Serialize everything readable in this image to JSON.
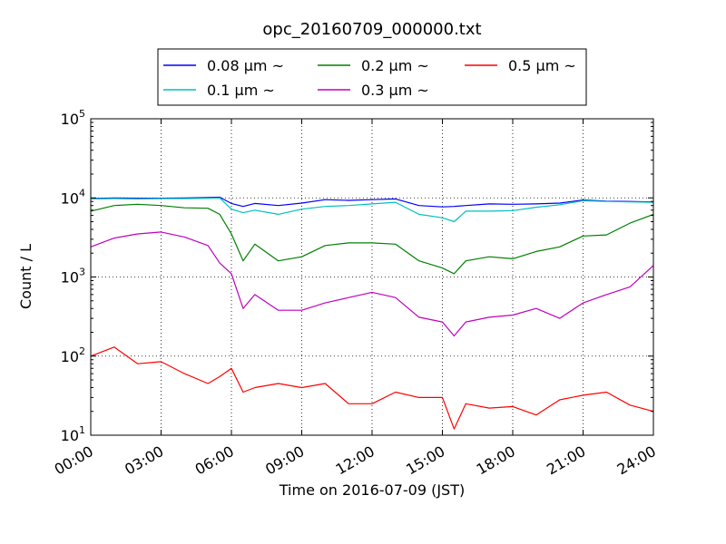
{
  "chart_data": {
    "type": "line",
    "title": "opc_20160709_000000.txt",
    "xlabel": "Time on 2016-07-09 (JST)",
    "ylabel": "Count / L",
    "yscale": "log",
    "xlim_hours": [
      0,
      24
    ],
    "ylim": [
      10,
      100000
    ],
    "grid": true,
    "legend_position": "top-center",
    "x_ticks": [
      "00:00",
      "03:00",
      "06:00",
      "09:00",
      "12:00",
      "15:00",
      "18:00",
      "21:00",
      "24:00"
    ],
    "y_ticks": [
      {
        "value": 10,
        "base": "10",
        "exp": "1"
      },
      {
        "value": 100,
        "base": "10",
        "exp": "2"
      },
      {
        "value": 1000,
        "base": "10",
        "exp": "3"
      },
      {
        "value": 10000,
        "base": "10",
        "exp": "4"
      },
      {
        "value": 100000,
        "base": "10",
        "exp": "5"
      }
    ],
    "x_hours": [
      0,
      1,
      2,
      3,
      4,
      5,
      5.5,
      6,
      6.5,
      7,
      8,
      9,
      10,
      11,
      12,
      13,
      14,
      15,
      15.5,
      16,
      17,
      18,
      19,
      20,
      21,
      22,
      23,
      24
    ],
    "series": [
      {
        "name": "0.08 µm ~",
        "color": "#0000ff",
        "values": [
          9800,
          10000,
          9900,
          9900,
          10000,
          10100,
          10200,
          8500,
          7800,
          8500,
          8000,
          8600,
          9500,
          9300,
          9500,
          9700,
          8000,
          7700,
          7800,
          8000,
          8400,
          8300,
          8400,
          8600,
          9400,
          9100,
          9000,
          8900
        ]
      },
      {
        "name": "0.1 µm ~",
        "color": "#00bfbf",
        "values": [
          9700,
          9800,
          9700,
          9800,
          9800,
          9900,
          10000,
          7200,
          6500,
          7000,
          6200,
          7200,
          7800,
          8000,
          8400,
          8800,
          6200,
          5600,
          5000,
          6800,
          6800,
          6900,
          7600,
          8200,
          9200,
          9000,
          8900,
          8800
        ]
      },
      {
        "name": "0.2 µm ~",
        "color": "#008000",
        "values": [
          6800,
          8000,
          8300,
          8000,
          7500,
          7400,
          6200,
          3500,
          1600,
          2600,
          1600,
          1800,
          2500,
          2700,
          2700,
          2600,
          1600,
          1300,
          1100,
          1600,
          1800,
          1700,
          2100,
          2400,
          3300,
          3400,
          4800,
          6200
        ]
      },
      {
        "name": "0.3 µm ~",
        "color": "#bf00bf",
        "values": [
          2400,
          3100,
          3500,
          3700,
          3200,
          2500,
          1500,
          1100,
          400,
          600,
          380,
          380,
          470,
          550,
          640,
          550,
          310,
          270,
          180,
          270,
          310,
          330,
          400,
          300,
          470,
          600,
          750,
          1400
        ]
      },
      {
        "name": "0.5 µm ~",
        "color": "#ff0000",
        "values": [
          100,
          130,
          80,
          85,
          60,
          45,
          55,
          70,
          35,
          40,
          45,
          40,
          45,
          25,
          25,
          35,
          30,
          30,
          12,
          25,
          22,
          23,
          18,
          28,
          32,
          35,
          24,
          20
        ]
      }
    ]
  }
}
